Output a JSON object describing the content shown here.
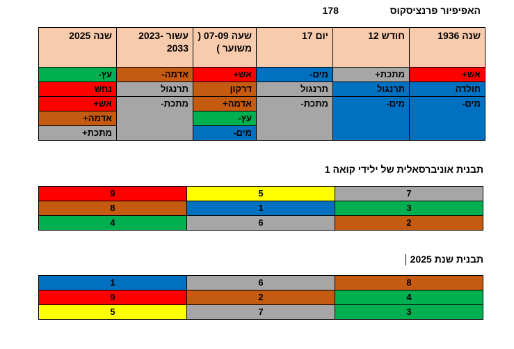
{
  "header": {
    "title": "האפיפיור פרנציסקוס",
    "number": "178"
  },
  "colors": {
    "red": "#ff0000",
    "blue": "#0070c0",
    "green": "#00b050",
    "gray": "#a6a6a6",
    "brown": "#c55a11",
    "yellow": "#ffff00",
    "header_bg": "#f8cbad"
  },
  "main_table": {
    "columns": [
      "שנה 1936",
      "חודש 12",
      "יום 17",
      "שעה 07-09 ( משוער )",
      "עשור 2023-2033",
      "שנה 2025"
    ],
    "rows": [
      [
        "אש+",
        "מתכת+",
        "מים-",
        "אש+",
        "אדמה-",
        "עץ-"
      ],
      [
        "חולדה",
        "תרנגול",
        "תרנגול",
        "דרקון",
        "תרנגול",
        "נחש"
      ],
      [
        "מים-",
        "מים-",
        "מתכת-",
        "אדמה+",
        "מתכת-",
        "אש+"
      ],
      [
        "",
        "",
        "",
        "עץ-",
        "",
        "אדמה+"
      ],
      [
        "",
        "",
        "",
        "מים-",
        "",
        "מתכת+"
      ]
    ]
  },
  "section1": {
    "title": "תבנית אוניברסאלית של ילידי קואה 1",
    "rows": [
      [
        "7",
        "5",
        "9"
      ],
      [
        "3",
        "1",
        "8"
      ],
      [
        "2",
        "6",
        "4"
      ]
    ]
  },
  "section2": {
    "title": "תבנית שנת 2025",
    "rows": [
      [
        "8",
        "6",
        "1"
      ],
      [
        "4",
        "2",
        "9"
      ],
      [
        "3",
        "7",
        "5"
      ]
    ]
  }
}
